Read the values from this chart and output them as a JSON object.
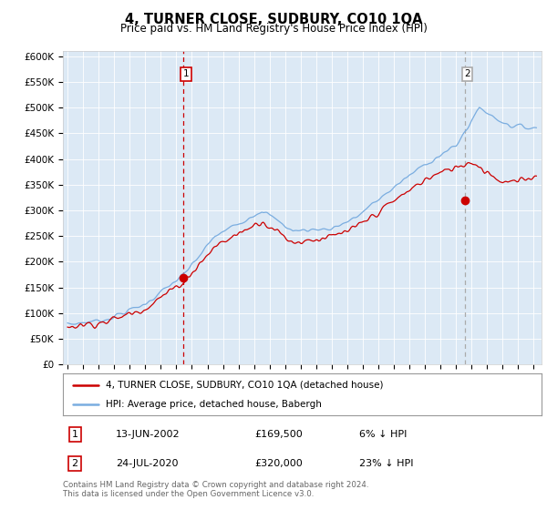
{
  "title": "4, TURNER CLOSE, SUDBURY, CO10 1QA",
  "subtitle": "Price paid vs. HM Land Registry's House Price Index (HPI)",
  "property_label": "4, TURNER CLOSE, SUDBURY, CO10 1QA (detached house)",
  "hpi_label": "HPI: Average price, detached house, Babergh",
  "sale1_date": "13-JUN-2002",
  "sale1_price": 169500,
  "sale1_note": "6% ↓ HPI",
  "sale2_date": "24-JUL-2020",
  "sale2_price": 320000,
  "sale2_note": "23% ↓ HPI",
  "footer": "Contains HM Land Registry data © Crown copyright and database right 2024.\nThis data is licensed under the Open Government Licence v3.0.",
  "hpi_color": "#7aade0",
  "property_color": "#cc0000",
  "sale1_vline_color": "#cc0000",
  "sale2_vline_color": "#aaaaaa",
  "ylim": [
    0,
    600000
  ],
  "background_color": "#ffffff",
  "plot_bg_color": "#dce9f5"
}
